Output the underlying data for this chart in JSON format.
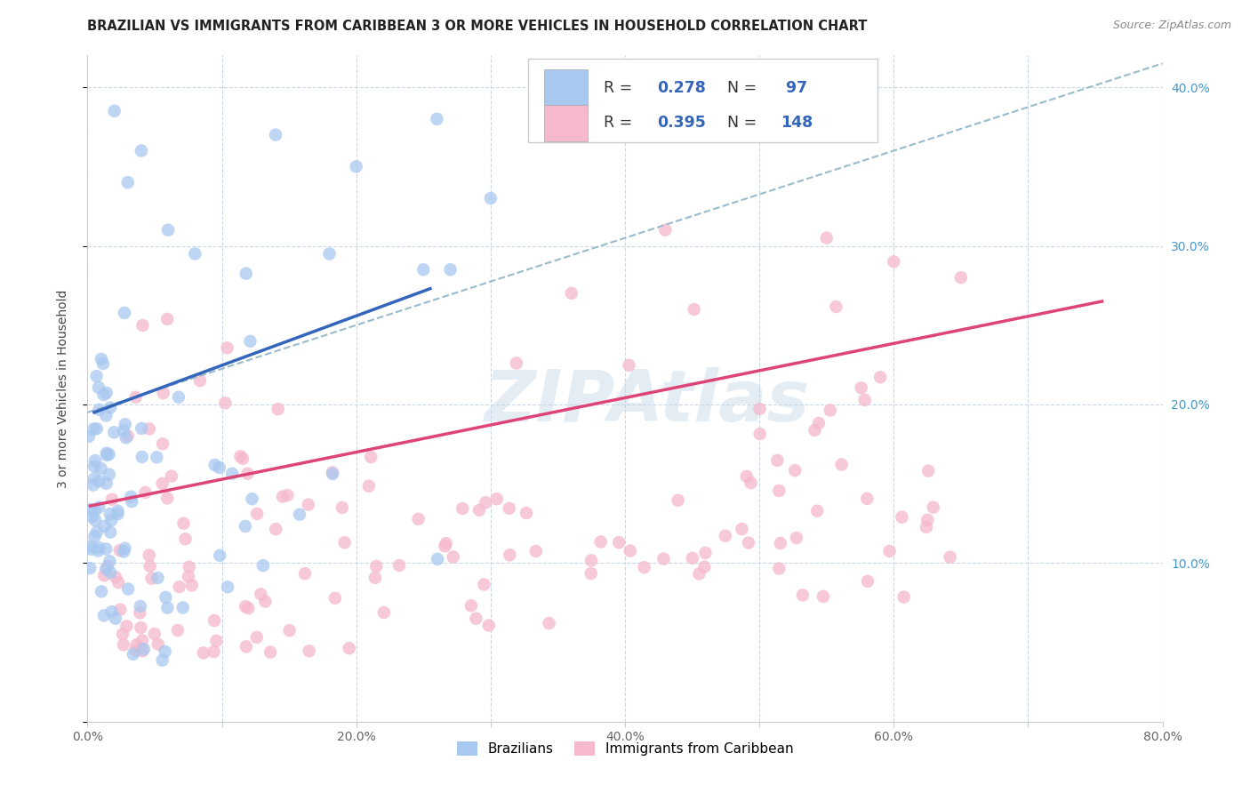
{
  "title": "BRAZILIAN VS IMMIGRANTS FROM CARIBBEAN 3 OR MORE VEHICLES IN HOUSEHOLD CORRELATION CHART",
  "source": "Source: ZipAtlas.com",
  "ylabel": "3 or more Vehicles in Household",
  "xlim": [
    0.0,
    0.8
  ],
  "ylim": [
    0.0,
    0.42
  ],
  "xticks": [
    0.0,
    0.1,
    0.2,
    0.3,
    0.4,
    0.5,
    0.6,
    0.7,
    0.8
  ],
  "xticklabels": [
    "0.0%",
    "",
    "20.0%",
    "",
    "40.0%",
    "",
    "60.0%",
    "",
    "80.0%"
  ],
  "yticks": [
    0.0,
    0.1,
    0.2,
    0.3,
    0.4
  ],
  "yticklabels_right": [
    "",
    "10.0%",
    "20.0%",
    "30.0%",
    "40.0%"
  ],
  "R_blue": 0.278,
  "N_blue": 97,
  "R_pink": 0.395,
  "N_pink": 148,
  "blue_color": "#a8c8f0",
  "pink_color": "#f5b8cc",
  "blue_line_color": "#3366bb",
  "pink_line_color": "#dd4477",
  "dashed_line_color": "#99bbcc",
  "legend_label_blue": "Brazilians",
  "legend_label_pink": "Immigrants from Caribbean",
  "watermark": "ZIPAtlas",
  "title_fontsize": 10.5,
  "source_fontsize": 9,
  "blue_line_x": [
    0.005,
    0.255
  ],
  "blue_line_y": [
    0.195,
    0.273
  ],
  "pink_line_x": [
    0.002,
    0.755
  ],
  "pink_line_y": [
    0.136,
    0.265
  ],
  "dash_line_x": [
    0.0,
    0.8
  ],
  "dash_line_y": [
    0.195,
    0.415
  ]
}
